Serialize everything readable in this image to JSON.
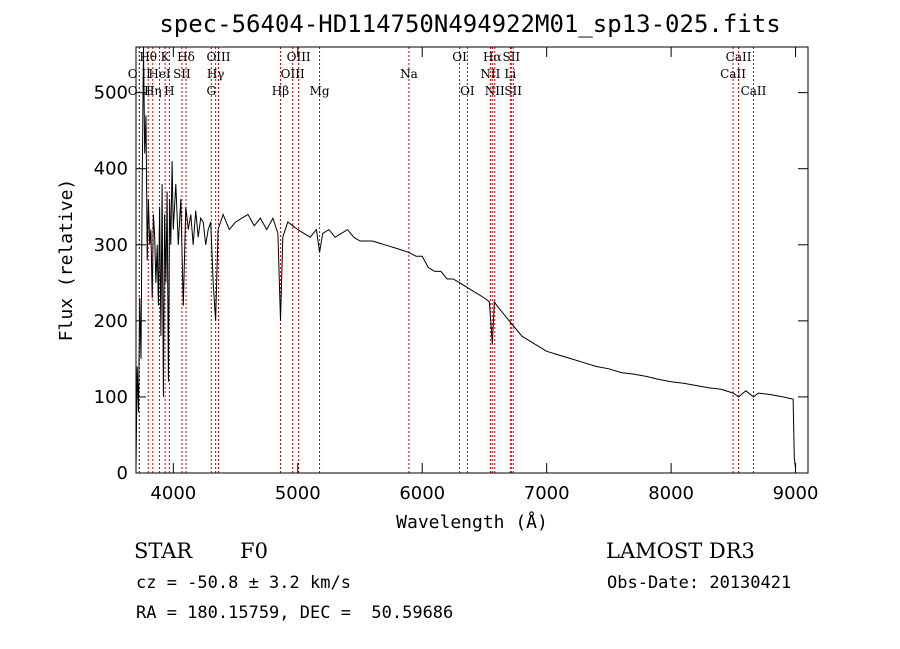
{
  "chart_data": {
    "type": "line",
    "title": "spec-56404-HD114750N494922M01_sp13-025.fits",
    "xlabel": "Wavelength (Å)",
    "ylabel": "Flux (relative)",
    "xlim": [
      3700,
      9100
    ],
    "ylim": [
      0,
      560
    ],
    "xticks": [
      4000,
      5000,
      6000,
      7000,
      8000,
      9000
    ],
    "yticks": [
      0,
      100,
      200,
      300,
      400,
      500
    ],
    "series": [
      {
        "name": "flux",
        "x": [
          3700,
          3710,
          3720,
          3730,
          3740,
          3750,
          3760,
          3770,
          3780,
          3790,
          3800,
          3810,
          3820,
          3830,
          3840,
          3850,
          3860,
          3870,
          3880,
          3890,
          3900,
          3910,
          3920,
          3930,
          3940,
          3950,
          3960,
          3970,
          3980,
          3990,
          4000,
          4020,
          4040,
          4060,
          4080,
          4100,
          4120,
          4140,
          4160,
          4180,
          4200,
          4220,
          4240,
          4260,
          4280,
          4300,
          4320,
          4340,
          4360,
          4380,
          4400,
          4450,
          4500,
          4550,
          4600,
          4650,
          4700,
          4750,
          4800,
          4840,
          4861,
          4880,
          4920,
          4960,
          5000,
          5050,
          5100,
          5150,
          5175,
          5200,
          5250,
          5300,
          5350,
          5400,
          5450,
          5500,
          5600,
          5700,
          5800,
          5893,
          5950,
          6000,
          6050,
          6100,
          6150,
          6200,
          6250,
          6300,
          6350,
          6400,
          6450,
          6500,
          6540,
          6563,
          6580,
          6600,
          6650,
          6700,
          6750,
          6800,
          6900,
          7000,
          7100,
          7200,
          7300,
          7400,
          7500,
          7600,
          7700,
          7800,
          7900,
          8000,
          8100,
          8200,
          8300,
          8400,
          8500,
          8542,
          8600,
          8662,
          8700,
          8800,
          8900,
          8980,
          8990,
          9000
        ],
        "values": [
          5,
          140,
          80,
          230,
          150,
          380,
          560,
          420,
          470,
          280,
          360,
          300,
          320,
          230,
          340,
          310,
          250,
          300,
          220,
          350,
          180,
          380,
          100,
          340,
          250,
          370,
          120,
          360,
          300,
          410,
          320,
          380,
          300,
          360,
          220,
          350,
          320,
          340,
          300,
          345,
          310,
          335,
          330,
          300,
          320,
          330,
          250,
          200,
          320,
          330,
          340,
          320,
          330,
          335,
          340,
          325,
          335,
          320,
          335,
          315,
          200,
          310,
          330,
          325,
          320,
          315,
          310,
          320,
          290,
          315,
          320,
          310,
          315,
          320,
          310,
          305,
          305,
          300,
          295,
          290,
          285,
          285,
          270,
          265,
          265,
          255,
          255,
          250,
          245,
          240,
          235,
          230,
          225,
          170,
          225,
          220,
          210,
          200,
          190,
          180,
          170,
          160,
          155,
          150,
          145,
          140,
          137,
          132,
          130,
          127,
          123,
          120,
          118,
          115,
          112,
          110,
          105,
          100,
          108,
          100,
          105,
          103,
          100,
          97,
          20,
          5
        ]
      }
    ],
    "line_markers": [
      {
        "label": "O II",
        "wl": 3727,
        "row": 2
      },
      {
        "label": "Hθ",
        "wl": 3798,
        "row": 0
      },
      {
        "label": "O II",
        "wl": 3727,
        "row": 1
      },
      {
        "label": "Hη",
        "wl": 3835,
        "row": 2
      },
      {
        "label": "HeI",
        "wl": 3889,
        "row": 1
      },
      {
        "label": "K",
        "wl": 3934,
        "row": 0
      },
      {
        "label": "H",
        "wl": 3968,
        "row": 2
      },
      {
        "label": "SII",
        "wl": 4069,
        "row": 1
      },
      {
        "label": "Hδ",
        "wl": 4102,
        "row": 0
      },
      {
        "label": "G",
        "wl": 4305,
        "row": 2
      },
      {
        "label": "Hγ",
        "wl": 4340,
        "row": 1
      },
      {
        "label": "OIII",
        "wl": 4363,
        "row": 0
      },
      {
        "label": "Hβ",
        "wl": 4861,
        "row": 2
      },
      {
        "label": "OIII",
        "wl": 4959,
        "row": 1
      },
      {
        "label": "OIII",
        "wl": 5007,
        "row": 0
      },
      {
        "label": "Mg",
        "wl": 5175,
        "row": 2
      },
      {
        "label": "Na",
        "wl": 5893,
        "row": 1
      },
      {
        "label": "OI",
        "wl": 6300,
        "row": 0
      },
      {
        "label": "OI",
        "wl": 6363,
        "row": 2
      },
      {
        "label": "NII",
        "wl": 6548,
        "row": 1
      },
      {
        "label": "Hα",
        "wl": 6563,
        "row": 0
      },
      {
        "label": "NII",
        "wl": 6583,
        "row": 2
      },
      {
        "label": "SII",
        "wl": 6716,
        "row": 0
      },
      {
        "label": "Li",
        "wl": 6708,
        "row": 1
      },
      {
        "label": "SII",
        "wl": 6731,
        "row": 2
      },
      {
        "label": "CaII",
        "wl": 8498,
        "row": 1
      },
      {
        "label": "CaII",
        "wl": 8542,
        "row": 0
      },
      {
        "label": "CaII",
        "wl": 8662,
        "row": 2
      }
    ]
  },
  "info": {
    "object_type": "STAR",
    "subclass": "F0",
    "survey": "LAMOST DR3",
    "cz": "cz = -50.8 ± 3.2 km/s",
    "obs_date": "Obs-Date: 20130421",
    "radec": "RA = 180.15759, DEC =  50.59686"
  },
  "colors": {
    "marker": "#cc0000",
    "line": "#000000"
  }
}
